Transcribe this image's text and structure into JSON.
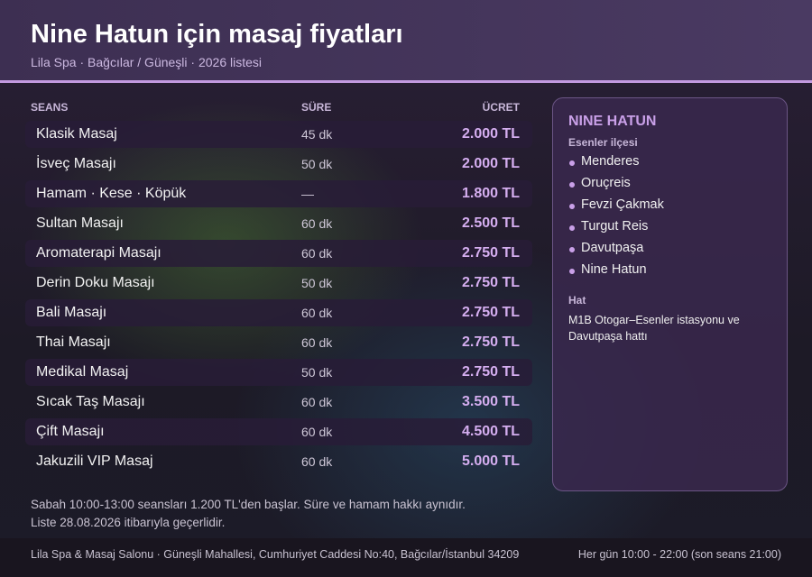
{
  "header": {
    "title": "Nine Hatun için masaj fiyatları",
    "subtitle": "Lila Spa · Bağcılar / Güneşli · 2026 listesi"
  },
  "table": {
    "columns": [
      "SEANS",
      "SÜRE",
      "ÜCRET"
    ],
    "rows": [
      [
        "Klasik Masaj",
        "45 dk",
        "2.000 TL"
      ],
      [
        "İsveç Masajı",
        "50 dk",
        "2.000 TL"
      ],
      [
        "Hamam · Kese · Köpük",
        "—",
        "1.800 TL"
      ],
      [
        "Sultan Masajı",
        "60 dk",
        "2.500 TL"
      ],
      [
        "Aromaterapi Masajı",
        "60 dk",
        "2.750 TL"
      ],
      [
        "Derin Doku Masajı",
        "50 dk",
        "2.750 TL"
      ],
      [
        "Bali Masajı",
        "60 dk",
        "2.750 TL"
      ],
      [
        "Thai Masajı",
        "60 dk",
        "2.750 TL"
      ],
      [
        "Medikal Masaj",
        "50 dk",
        "2.750 TL"
      ],
      [
        "Sıcak Taş Masajı",
        "60 dk",
        "3.500 TL"
      ],
      [
        "Çift Masajı",
        "60 dk",
        "4.500 TL"
      ],
      [
        "Jakuzili VIP Masaj",
        "60 dk",
        "5.000 TL"
      ]
    ]
  },
  "sidebar": {
    "title": "NINE HATUN",
    "subtitle": "Esenler ilçesi",
    "items": [
      "Menderes",
      "Oruçreis",
      "Fevzi Çakmak",
      "Turgut Reis",
      "Davutpaşa",
      "Nine Hatun"
    ],
    "transit_label": "Hat",
    "transit_text": "M1B Otogar–Esenler istasyonu ve Davutpaşa hattı"
  },
  "notes": [
    "Sabah 10:00-13:00 seansları 1.200 TL'den başlar. Süre ve hamam hakkı aynıdır.",
    "Liste 28.08.2026 itibarıyla geçerlidir."
  ],
  "footer": {
    "address": "Lila Spa & Masaj Salonu · Güneşli Mahallesi, Cumhuriyet Caddesi No:40, Bağcılar/İstanbul 34209",
    "hours": "Her gün 10:00 - 22:00 (son seans 21:00)"
  }
}
